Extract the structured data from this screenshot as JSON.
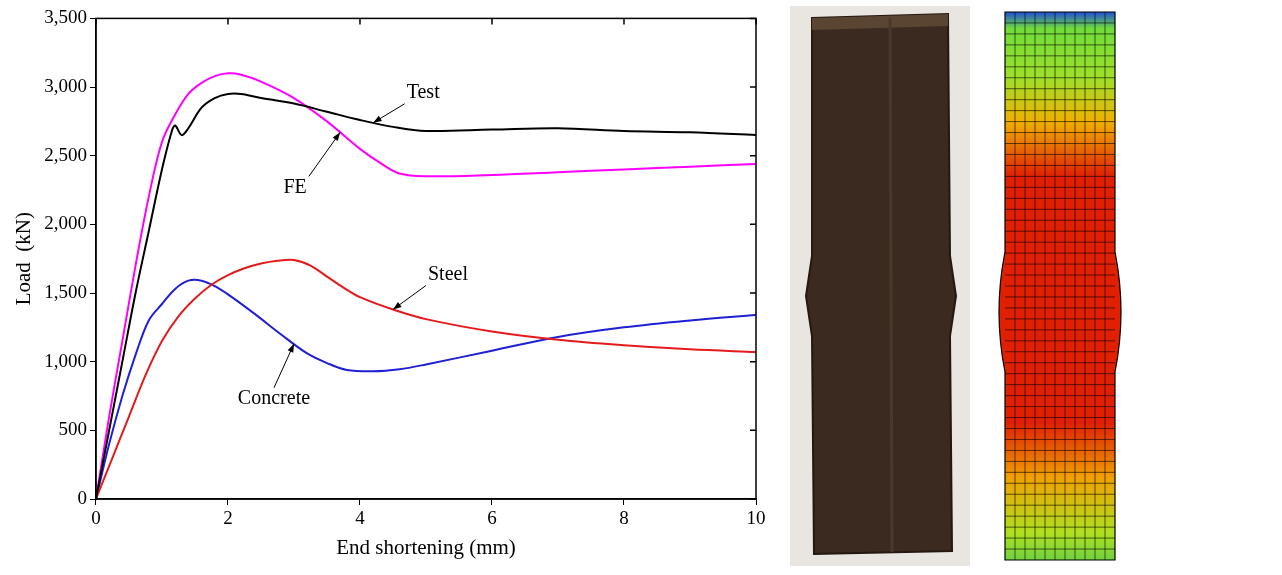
{
  "chart_data": {
    "type": "line",
    "x_label": "End shortening (mm)",
    "y_label": "Load  (kN)",
    "xlim": [
      0,
      10
    ],
    "xticks": [
      0,
      2,
      4,
      6,
      8,
      10
    ],
    "ylim": [
      0,
      3500
    ],
    "yticks": [
      0,
      500,
      1000,
      1500,
      2000,
      2500,
      3000,
      3500
    ],
    "grid": false,
    "series": [
      {
        "name": "Test",
        "color": "#000000",
        "x": [
          0,
          0.2,
          0.4,
          0.6,
          0.8,
          1.0,
          1.15,
          1.2,
          1.3,
          1.4,
          1.6,
          1.8,
          2.0,
          2.2,
          2.5,
          3,
          3.5,
          4,
          4.5,
          5,
          6,
          7,
          8,
          9,
          10
        ],
        "values": [
          0,
          500,
          1000,
          1500,
          1950,
          2400,
          2680,
          2720,
          2650,
          2700,
          2850,
          2920,
          2950,
          2950,
          2920,
          2880,
          2820,
          2760,
          2710,
          2680,
          2690,
          2700,
          2680,
          2670,
          2650
        ]
      },
      {
        "name": "FE",
        "color": "#ff00ff",
        "x": [
          0,
          0.2,
          0.4,
          0.6,
          0.8,
          1.0,
          1.2,
          1.4,
          1.6,
          1.8,
          2.0,
          2.2,
          2.5,
          3,
          3.5,
          4,
          4.3,
          4.6,
          5,
          6,
          7,
          8,
          9,
          10
        ],
        "values": [
          0,
          600,
          1150,
          1700,
          2200,
          2600,
          2800,
          2950,
          3030,
          3080,
          3100,
          3090,
          3040,
          2920,
          2750,
          2550,
          2450,
          2370,
          2350,
          2360,
          2380,
          2400,
          2420,
          2440
        ]
      },
      {
        "name": "Steel",
        "color": "#e41a1c",
        "x": [
          0,
          0.25,
          0.5,
          0.75,
          1.0,
          1.25,
          1.5,
          1.75,
          2.0,
          2.25,
          2.5,
          2.75,
          3.0,
          3.25,
          3.5,
          3.75,
          4.0,
          4.5,
          5,
          6,
          7,
          8,
          9,
          10
        ],
        "values": [
          0,
          300,
          600,
          900,
          1150,
          1330,
          1460,
          1560,
          1630,
          1680,
          1715,
          1735,
          1740,
          1700,
          1620,
          1540,
          1470,
          1380,
          1310,
          1220,
          1160,
          1120,
          1090,
          1070
        ]
      },
      {
        "name": "Concrete",
        "color": "#1f1fd6",
        "x": [
          0,
          0.2,
          0.4,
          0.6,
          0.8,
          1.0,
          1.2,
          1.4,
          1.6,
          1.8,
          2.0,
          2.4,
          2.8,
          3.2,
          3.5,
          3.8,
          4.2,
          4.6,
          5,
          6,
          7,
          8,
          9,
          10
        ],
        "values": [
          0,
          400,
          750,
          1050,
          1300,
          1420,
          1530,
          1590,
          1590,
          1550,
          1490,
          1350,
          1200,
          1060,
          990,
          940,
          930,
          945,
          980,
          1080,
          1180,
          1250,
          1300,
          1340
        ]
      }
    ]
  }
}
